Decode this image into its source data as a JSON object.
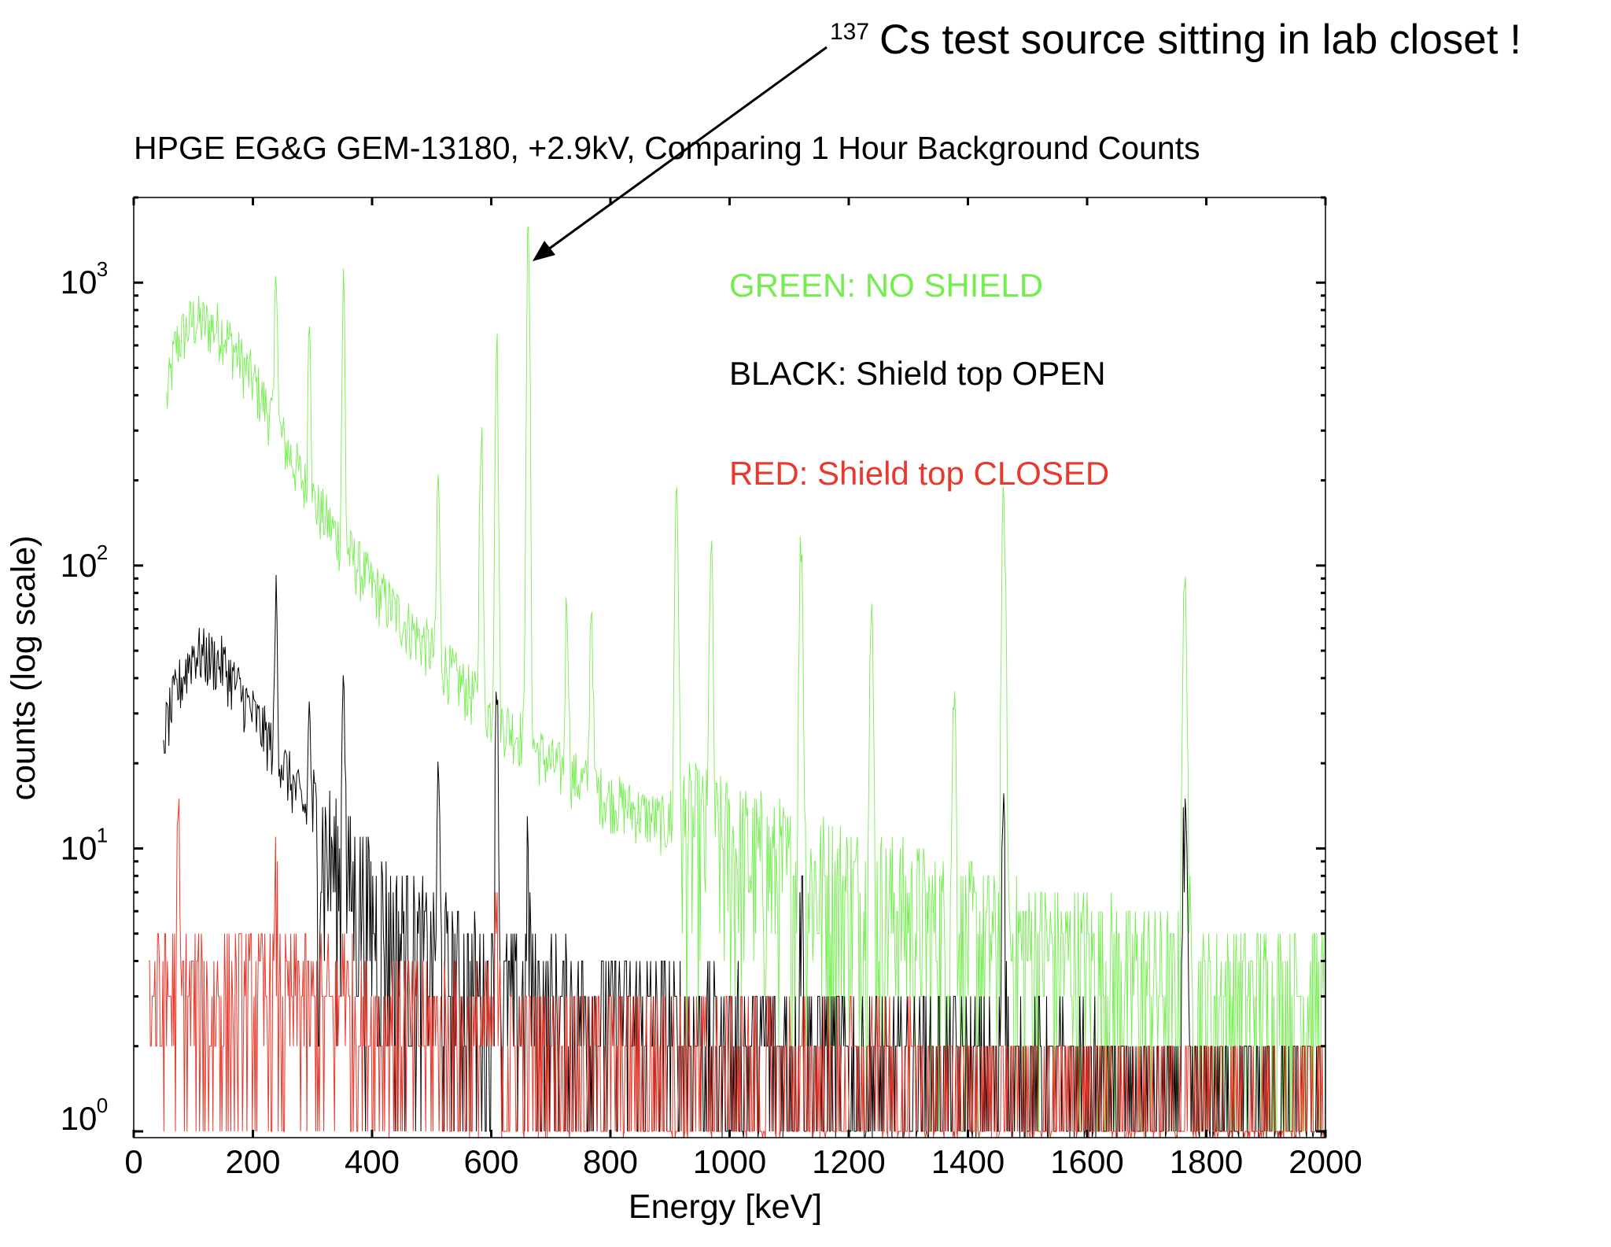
{
  "annotation": {
    "isotope_mass": "137",
    "text": "Cs test source sitting in lab closet !"
  },
  "chart_data": {
    "type": "line",
    "title": "HPGE EG&G GEM-13180, +2.9kV, Comparing 1 Hour Background Counts",
    "xlabel": "Energy [keV]",
    "ylabel": "counts (log scale)",
    "xlim": [
      0,
      2000
    ],
    "ylim": [
      0.95,
      2000
    ],
    "yscale": "log",
    "grid": false,
    "xticks": [
      0,
      200,
      400,
      600,
      800,
      1000,
      1200,
      1400,
      1600,
      1800,
      2000
    ],
    "yticks": [
      {
        "base": "10",
        "exp": "0",
        "value": 1
      },
      {
        "base": "10",
        "exp": "1",
        "value": 10
      },
      {
        "base": "10",
        "exp": "2",
        "value": 100
      },
      {
        "base": "10",
        "exp": "3",
        "value": 1000
      }
    ],
    "legend": [
      {
        "label": "GREEN: NO SHIELD",
        "color": "#74ee4f"
      },
      {
        "label": "BLACK: Shield top OPEN",
        "color": "#000000"
      },
      {
        "label": "RED: Shield top CLOSED",
        "color": "#e8392c"
      }
    ],
    "legend_placement": "top-right",
    "series": [
      {
        "name": "NO SHIELD",
        "color": "#74ee4f",
        "start_keV": 55,
        "continuum": [
          [
            55,
            380
          ],
          [
            70,
            600
          ],
          [
            100,
            740
          ],
          [
            150,
            680
          ],
          [
            200,
            450
          ],
          [
            250,
            280
          ],
          [
            300,
            170
          ],
          [
            350,
            120
          ],
          [
            400,
            85
          ],
          [
            450,
            65
          ],
          [
            500,
            50
          ],
          [
            550,
            38
          ],
          [
            600,
            30
          ],
          [
            650,
            25
          ],
          [
            700,
            20
          ],
          [
            800,
            15
          ],
          [
            900,
            12
          ],
          [
            1000,
            10
          ],
          [
            1100,
            8
          ],
          [
            1200,
            7
          ],
          [
            1300,
            6
          ],
          [
            1400,
            5
          ],
          [
            1500,
            4.5
          ],
          [
            1600,
            4
          ],
          [
            1700,
            3.5
          ],
          [
            1800,
            3
          ],
          [
            1900,
            3
          ],
          [
            2000,
            3
          ]
        ],
        "peaks": [
          [
            239,
            1000
          ],
          [
            295,
            700
          ],
          [
            352,
            900
          ],
          [
            511,
            160
          ],
          [
            583,
            300
          ],
          [
            609,
            600
          ],
          [
            662,
            1400
          ],
          [
            727,
            60
          ],
          [
            768,
            60
          ],
          [
            911,
            190
          ],
          [
            969,
            110
          ],
          [
            1120,
            120
          ],
          [
            1238,
            60
          ],
          [
            1377,
            30
          ],
          [
            1460,
            160
          ],
          [
            1764,
            80
          ]
        ]
      },
      {
        "name": "Shield top OPEN",
        "color": "#000000",
        "start_keV": 50,
        "continuum": [
          [
            50,
            25
          ],
          [
            70,
            35
          ],
          [
            100,
            50
          ],
          [
            150,
            45
          ],
          [
            200,
            30
          ],
          [
            250,
            20
          ],
          [
            300,
            12
          ],
          [
            350,
            8
          ],
          [
            400,
            6
          ],
          [
            500,
            4
          ],
          [
            600,
            3
          ],
          [
            800,
            2.5
          ],
          [
            1000,
            2
          ],
          [
            1500,
            1.5
          ],
          [
            2000,
            1.2
          ]
        ],
        "peaks": [
          [
            239,
            60
          ],
          [
            295,
            20
          ],
          [
            352,
            40
          ],
          [
            511,
            14
          ],
          [
            609,
            40
          ],
          [
            662,
            6
          ],
          [
            1120,
            6
          ],
          [
            1460,
            14
          ],
          [
            1764,
            9
          ]
        ]
      },
      {
        "name": "Shield top CLOSED",
        "color": "#e8392c",
        "start_keV": 25,
        "continuum": [
          [
            25,
            3
          ],
          [
            300,
            2.8
          ],
          [
            600,
            2
          ],
          [
            1000,
            1.6
          ],
          [
            1500,
            1.3
          ],
          [
            2000,
            1.2
          ]
        ],
        "peaks": [
          [
            75,
            8
          ],
          [
            239,
            4
          ],
          [
            352,
            4
          ],
          [
            609,
            3
          ]
        ]
      }
    ]
  }
}
